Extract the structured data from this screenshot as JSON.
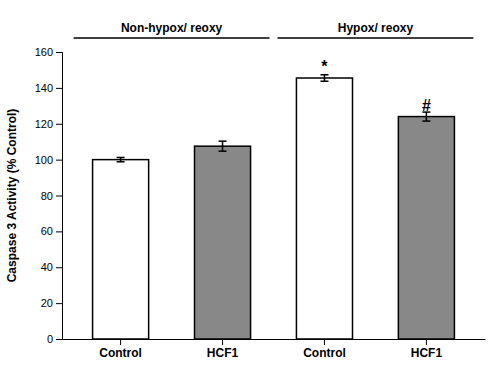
{
  "chart_data": {
    "type": "bar",
    "categories": [
      "Control",
      "HCF1",
      "Control",
      "HCF1"
    ],
    "values": [
      100.0,
      107.5,
      145.5,
      124.0
    ],
    "errors": [
      1.2,
      2.8,
      1.8,
      2.5
    ],
    "colors": [
      "white",
      "#888888",
      "white",
      "#888888"
    ],
    "ylabel": "Caspase 3 Activity (% Control)",
    "ylim": [
      0,
      160
    ],
    "yticks": [
      0,
      20,
      40,
      60,
      80,
      100,
      120,
      140,
      160
    ],
    "group_labels": [
      "Non-hypox/ reoxy",
      "Hypox/ reoxy"
    ],
    "annotations": [
      {
        "text": "*",
        "index": 2,
        "y": 149
      },
      {
        "text": "#",
        "index": 3,
        "y": 127
      }
    ],
    "grid": false
  }
}
